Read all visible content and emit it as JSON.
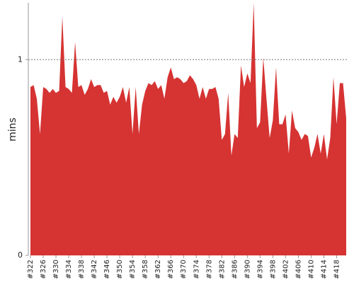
{
  "chart_data": {
    "type": "area",
    "y_label": "mins",
    "color": "#d63333",
    "x": [
      322,
      323,
      324,
      325,
      326,
      327,
      328,
      329,
      330,
      331,
      332,
      333,
      334,
      335,
      336,
      337,
      338,
      339,
      340,
      341,
      342,
      343,
      344,
      345,
      346,
      347,
      348,
      349,
      350,
      351,
      352,
      353,
      354,
      355,
      356,
      357,
      358,
      359,
      360,
      361,
      362,
      363,
      364,
      365,
      366,
      367,
      368,
      369,
      370,
      371,
      372,
      373,
      374,
      375,
      376,
      377,
      378,
      379,
      380,
      381,
      382,
      383,
      384,
      385,
      386,
      387,
      388,
      389,
      390,
      391,
      392,
      393,
      394,
      395,
      396,
      397,
      398,
      399,
      400,
      401,
      402,
      403,
      404,
      405,
      406,
      407,
      408,
      409,
      410,
      411,
      412,
      413,
      414,
      415,
      416,
      417,
      418,
      419,
      420,
      421
    ],
    "values": [
      0.86,
      0.87,
      0.8,
      0.62,
      0.86,
      0.85,
      0.83,
      0.85,
      0.83,
      0.84,
      1.22,
      0.86,
      0.85,
      0.83,
      1.09,
      0.86,
      0.87,
      0.82,
      0.85,
      0.9,
      0.86,
      0.87,
      0.87,
      0.83,
      0.84,
      0.77,
      0.81,
      0.78,
      0.81,
      0.86,
      0.78,
      0.86,
      0.62,
      0.86,
      0.62,
      0.77,
      0.84,
      0.88,
      0.87,
      0.89,
      0.85,
      0.87,
      0.8,
      0.91,
      0.96,
      0.9,
      0.91,
      0.9,
      0.88,
      0.89,
      0.92,
      0.9,
      0.87,
      0.8,
      0.86,
      0.8,
      0.85,
      0.85,
      0.86,
      0.8,
      0.59,
      0.62,
      0.83,
      0.51,
      0.62,
      0.6,
      0.97,
      0.86,
      0.93,
      0.88,
      1.29,
      0.65,
      0.68,
      1.01,
      0.8,
      0.6,
      0.69,
      0.96,
      0.67,
      0.67,
      0.72,
      0.52,
      0.74,
      0.65,
      0.63,
      0.59,
      0.62,
      0.61,
      0.5,
      0.55,
      0.62,
      0.52,
      0.62,
      0.49,
      0.6,
      0.91,
      0.67,
      0.88,
      0.88,
      0.7
    ],
    "xlim": [
      322,
      421
    ],
    "ylim": [
      0,
      1.29
    ],
    "yticks": [
      0,
      1
    ],
    "grid": true,
    "xticks": [
      {
        "value": 322,
        "label": "#322"
      },
      {
        "value": 326,
        "label": "#326"
      },
      {
        "value": 330,
        "label": "#330"
      },
      {
        "value": 334,
        "label": "#334"
      },
      {
        "value": 338,
        "label": "#338"
      },
      {
        "value": 342,
        "label": "#342"
      },
      {
        "value": 346,
        "label": "#346"
      },
      {
        "value": 350,
        "label": "#350"
      },
      {
        "value": 354,
        "label": "#354"
      },
      {
        "value": 358,
        "label": "#358"
      },
      {
        "value": 362,
        "label": "#362"
      },
      {
        "value": 366,
        "label": "#366"
      },
      {
        "value": 370,
        "label": "#370"
      },
      {
        "value": 374,
        "label": "#374"
      },
      {
        "value": 378,
        "label": "#378"
      },
      {
        "value": 382,
        "label": "#382"
      },
      {
        "value": 386,
        "label": "#386"
      },
      {
        "value": 390,
        "label": "#390"
      },
      {
        "value": 394,
        "label": "#394"
      },
      {
        "value": 398,
        "label": "#398"
      },
      {
        "value": 402,
        "label": "#402"
      },
      {
        "value": 406,
        "label": "#406"
      },
      {
        "value": 410,
        "label": "#410"
      },
      {
        "value": 414,
        "label": "#414"
      },
      {
        "value": 418,
        "label": "#418"
      }
    ]
  }
}
